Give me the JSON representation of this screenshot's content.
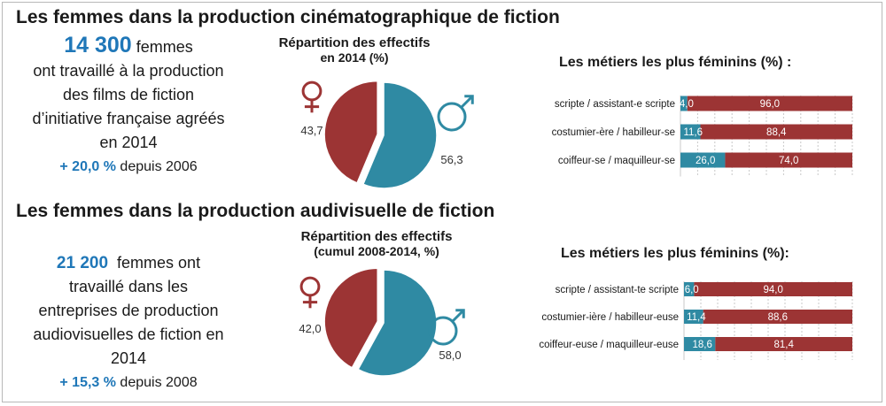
{
  "colors": {
    "female": "#9c3434",
    "male": "#2f8aa3",
    "accent": "#1f77b8",
    "grid": "#c8c8c8"
  },
  "sections": [
    {
      "title": "Les femmes dans la production cinématographique de fiction",
      "intro": {
        "count": "14 300",
        "count_suffix": " femmes",
        "lines": [
          "ont travaillé à la production",
          "des films de fiction",
          "d’initiative française agréés",
          "en 2014"
        ],
        "trend_pct": "+ 20,0 %",
        "trend_text": " depuis 2006"
      },
      "pie_title_line1": "Répartition des effectifs",
      "pie_title_line2": "en 2014 (%)",
      "bars_title": "Les métiers les plus féminins (%) :"
    },
    {
      "title": "Les femmes dans la production audivisuelle de fiction",
      "intro": {
        "count": "21 200",
        "count_suffix": "  femmes ont",
        "lines": [
          "travaillé dans les",
          "entreprises de production",
          "audiovisuelles de fiction en",
          "2014"
        ],
        "trend_pct": "+ 15,3 %",
        "trend_text": " depuis 2008"
      },
      "pie_title_line1": "Répartition des effectifs",
      "pie_title_line2": "(cumul 2008-2014, %)",
      "bars_title": "Les métiers les plus féminins (%):"
    }
  ],
  "chart_data": [
    {
      "type": "pie",
      "title": "Répartition des effectifs en 2014 (%)",
      "labels": [
        "♀",
        "♂"
      ],
      "values": [
        43.7,
        56.3
      ],
      "value_labels": [
        "43,7",
        "56,3"
      ]
    },
    {
      "type": "bar",
      "orientation": "horizontal",
      "stacked": true,
      "title": "Les métiers les plus féminins (%) :",
      "categories": [
        "scripte / assistant-e scripte",
        "costumier-ère / habilleur-se",
        "coiffeur-se / maquilleur-se"
      ],
      "series": [
        {
          "values": [
            4.0,
            11.6,
            26.0
          ],
          "value_labels": [
            "4,0",
            "11,6",
            "26,0"
          ]
        },
        {
          "values": [
            96.0,
            88.4,
            74.0
          ],
          "value_labels": [
            "96,0",
            "88,4",
            "74,0"
          ]
        }
      ],
      "xlim": [
        0,
        100
      ],
      "grid": true
    },
    {
      "type": "pie",
      "title": "Répartition des effectifs (cumul 2008-2014, %)",
      "labels": [
        "♀",
        "♂"
      ],
      "values": [
        42.0,
        58.0
      ],
      "value_labels": [
        "42,0",
        "58,0"
      ]
    },
    {
      "type": "bar",
      "orientation": "horizontal",
      "stacked": true,
      "title": "Les métiers les plus féminins (%):",
      "categories": [
        "scripte / assistant-te scripte",
        "costumier-ière / habilleur-euse",
        "coiffeur-euse / maquilleur-euse"
      ],
      "series": [
        {
          "values": [
            6.0,
            11.4,
            18.6
          ],
          "value_labels": [
            "6,0",
            "11,4",
            "18,6"
          ]
        },
        {
          "values": [
            94.0,
            88.6,
            81.4
          ],
          "value_labels": [
            "94,0",
            "88,6",
            "81,4"
          ]
        }
      ],
      "xlim": [
        0,
        100
      ],
      "grid": true
    }
  ]
}
